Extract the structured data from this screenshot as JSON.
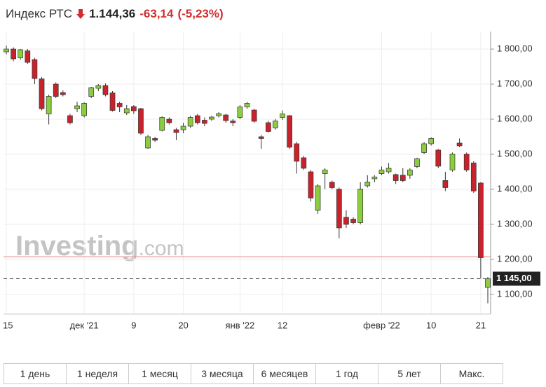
{
  "chart_data": {
    "type": "candlestick",
    "title": "Индекс РТС",
    "price": "1.144,36",
    "change": "-63,14",
    "change_pct": "(-5,23%)",
    "watermark": "Investing",
    "watermark_suffix": ".com",
    "up_color": "#8ccd3f",
    "down_color": "#c8232c",
    "categories": [
      "15",
      null,
      null,
      null,
      null,
      null,
      null,
      null,
      null,
      null,
      null,
      "дек '21",
      null,
      null,
      null,
      null,
      null,
      null,
      "9",
      null,
      null,
      null,
      null,
      null,
      null,
      "20",
      null,
      null,
      null,
      null,
      null,
      null,
      null,
      "янв '22",
      null,
      null,
      null,
      null,
      null,
      "12",
      null,
      null,
      null,
      null,
      null,
      null,
      null,
      null,
      null,
      null,
      null,
      null,
      null,
      "февр '22",
      null,
      null,
      null,
      null,
      null,
      null,
      "10",
      null,
      null,
      null,
      null,
      null,
      null,
      "21",
      null
    ],
    "open": [
      1792,
      1800,
      1775,
      1795,
      1770,
      1715,
      1615,
      1700,
      1676,
      1610,
      1630,
      1610,
      1665,
      1688,
      1696,
      1675,
      1645,
      1618,
      1636,
      1630,
      1518,
      1545,
      1568,
      1600,
      1570,
      1570,
      1580,
      1610,
      1597,
      1600,
      1610,
      1612,
      1595,
      1605,
      1635,
      1626,
      1550,
      1590,
      1575,
      1605,
      1610,
      1530,
      1490,
      1450,
      1340,
      1445,
      1420,
      1400,
      1320,
      1315,
      1305,
      1410,
      1430,
      1445,
      1450,
      1442,
      1440,
      1440,
      1465,
      1505,
      1530,
      1512,
      1425,
      1455,
      1532,
      1500,
      1475,
      1418,
      1120
    ],
    "high": [
      1810,
      1805,
      1800,
      1800,
      1775,
      1720,
      1670,
      1705,
      1682,
      1615,
      1650,
      1648,
      1692,
      1700,
      1702,
      1680,
      1650,
      1640,
      1640,
      1632,
      1555,
      1550,
      1608,
      1605,
      1575,
      1590,
      1610,
      1615,
      1605,
      1610,
      1620,
      1615,
      1600,
      1640,
      1650,
      1630,
      1555,
      1595,
      1600,
      1625,
      1612,
      1535,
      1495,
      1455,
      1415,
      1460,
      1425,
      1405,
      1340,
      1320,
      1420,
      1440,
      1440,
      1465,
      1475,
      1445,
      1460,
      1460,
      1490,
      1535,
      1548,
      1515,
      1450,
      1505,
      1545,
      1505,
      1480,
      1420,
      1150
    ],
    "low": [
      1785,
      1765,
      1770,
      1758,
      1700,
      1625,
      1585,
      1660,
      1665,
      1585,
      1620,
      1605,
      1660,
      1680,
      1665,
      1622,
      1620,
      1612,
      1615,
      1555,
      1515,
      1535,
      1565,
      1585,
      1540,
      1560,
      1575,
      1585,
      1580,
      1595,
      1605,
      1590,
      1580,
      1600,
      1630,
      1590,
      1515,
      1562,
      1570,
      1598,
      1515,
      1445,
      1455,
      1365,
      1330,
      1400,
      1400,
      1260,
      1290,
      1300,
      1300,
      1405,
      1420,
      1440,
      1445,
      1415,
      1420,
      1430,
      1460,
      1500,
      1525,
      1460,
      1395,
      1450,
      1520,
      1450,
      1390,
      1145,
      1075
    ],
    "close": [
      1800,
      1772,
      1798,
      1762,
      1716,
      1630,
      1665,
      1665,
      1670,
      1590,
      1638,
      1645,
      1690,
      1696,
      1670,
      1625,
      1635,
      1630,
      1624,
      1560,
      1550,
      1540,
      1605,
      1590,
      1562,
      1580,
      1605,
      1590,
      1588,
      1606,
      1616,
      1596,
      1590,
      1635,
      1645,
      1594,
      1545,
      1565,
      1595,
      1615,
      1520,
      1480,
      1460,
      1375,
      1410,
      1455,
      1405,
      1290,
      1300,
      1305,
      1400,
      1420,
      1435,
      1455,
      1460,
      1425,
      1425,
      1455,
      1487,
      1530,
      1545,
      1466,
      1405,
      1500,
      1524,
      1455,
      1395,
      1205,
      1145
    ],
    "ylim": [
      1044,
      1850
    ],
    "yticks": [
      {
        "value": 1100,
        "label": "1 100,00"
      },
      {
        "value": 1200,
        "label": "1 200,00"
      },
      {
        "value": 1300,
        "label": "1 300,00"
      },
      {
        "value": 1400,
        "label": "1 400,00"
      },
      {
        "value": 1500,
        "label": "1 500,00"
      },
      {
        "value": 1600,
        "label": "1 600,00"
      },
      {
        "value": 1700,
        "label": "1 700,00"
      },
      {
        "value": 1800,
        "label": "1 800,00"
      }
    ],
    "current": {
      "value": 1145,
      "label": "1 145,00"
    },
    "previous_close": 1207.5,
    "grid": true
  },
  "range_buttons": [
    "1 день",
    "1 неделя",
    "1 месяц",
    "3 месяца",
    "6 месяцев",
    "1 год",
    "5 лет",
    "Макс."
  ]
}
